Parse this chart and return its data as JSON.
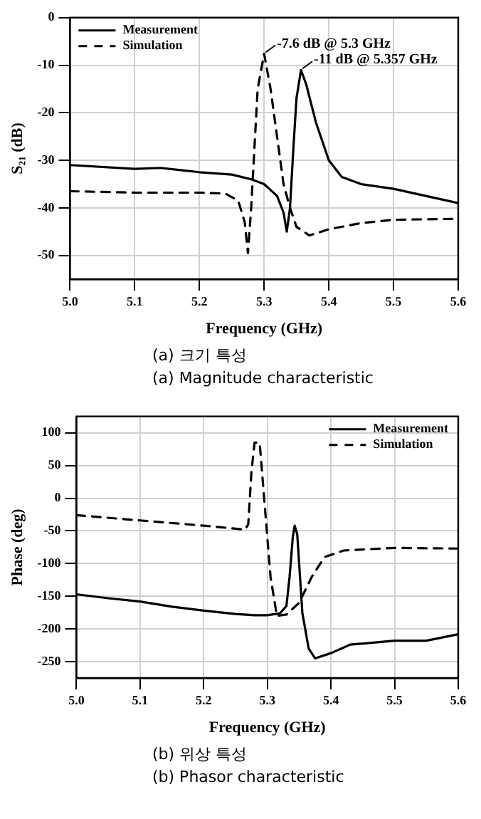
{
  "chart_data": [
    {
      "type": "line",
      "xlabel": "Frequency (GHz)",
      "ylabel": "S₂₁ (dB)",
      "xlim": [
        5.0,
        5.6
      ],
      "xticks": [
        {
          "value": 5.0,
          "label": "5.0"
        },
        5.1,
        5.2,
        5.3,
        5.4,
        5.5,
        5.6
      ],
      "ylim": [
        -55,
        0
      ],
      "yticks": [
        -50,
        -40,
        -30,
        -20,
        -10,
        0
      ],
      "grid": true,
      "legend": "top left",
      "marker": "none",
      "annotations": [
        {
          "text": "-7.6 dB @ 5.3 GHz",
          "x": 5.3,
          "y": -7.6
        },
        {
          "text": "-11 dB @ 5.357 GHz",
          "x": 5.357,
          "y": -11
        },
        "(a) 크기 특성",
        "(a) Magnitude characteristic"
      ],
      "series": [
        {
          "name": "Measurement",
          "color": "#000000",
          "line_style": "solid",
          "x": [
            5.0,
            5.1,
            5.14,
            5.2,
            5.25,
            5.28,
            5.3,
            5.32,
            5.33,
            5.335,
            5.34,
            5.345,
            5.35,
            5.357,
            5.365,
            5.38,
            5.4,
            5.42,
            5.45,
            5.5,
            5.55,
            5.6
          ],
          "values": [
            -31,
            -31.8,
            -31.6,
            -32.5,
            -33,
            -34,
            -35,
            -37.5,
            -41,
            -45,
            -40,
            -28,
            -17,
            -11,
            -14,
            -22,
            -30,
            -33.5,
            -35,
            -36,
            -37.5,
            -39
          ]
        },
        {
          "name": "Simulation",
          "color": "#000000",
          "line_style": "dashed",
          "x": [
            5.0,
            5.1,
            5.2,
            5.24,
            5.26,
            5.27,
            5.275,
            5.28,
            5.29,
            5.3,
            5.31,
            5.32,
            5.33,
            5.34,
            5.35,
            5.37,
            5.4,
            5.45,
            5.5,
            5.6
          ],
          "values": [
            -36.5,
            -36.8,
            -36.8,
            -37,
            -38.5,
            -43,
            -49.5,
            -40,
            -15,
            -7.6,
            -15,
            -25,
            -35,
            -40,
            -44,
            -45.8,
            -44.5,
            -43.2,
            -42.5,
            -42.3
          ]
        }
      ]
    },
    {
      "type": "line",
      "xlabel": "Frequency (GHz)",
      "ylabel": "Phase (deg)",
      "xlim": [
        5.0,
        5.6
      ],
      "xticks": [
        {
          "value": 5.0,
          "label": "5.0"
        },
        5.1,
        5.2,
        5.3,
        5.4,
        5.5,
        5.6
      ],
      "ylim": [
        -275,
        125
      ],
      "yticks": [
        -250,
        -200,
        -150,
        -100,
        -50,
        0,
        50,
        100
      ],
      "grid": true,
      "legend": "top right",
      "marker": "none",
      "annotations": [
        "(b) 위상 특성",
        "(b) Phasor characteristic"
      ],
      "series": [
        {
          "name": "Measurement",
          "color": "#000000",
          "line_style": "solid",
          "x": [
            5.0,
            5.05,
            5.1,
            5.15,
            5.2,
            5.25,
            5.28,
            5.3,
            5.32,
            5.33,
            5.335,
            5.34,
            5.343,
            5.347,
            5.35,
            5.355,
            5.365,
            5.375,
            5.4,
            5.43,
            5.5,
            5.55,
            5.6
          ],
          "values": [
            -147,
            -153,
            -158,
            -166,
            -172,
            -177,
            -179,
            -179,
            -176,
            -165,
            -120,
            -60,
            -42,
            -55,
            -100,
            -175,
            -230,
            -245,
            -237,
            -224,
            -218,
            -218,
            -208
          ]
        },
        {
          "name": "Simulation",
          "color": "#000000",
          "line_style": "dashed",
          "x": [
            5.0,
            5.1,
            5.2,
            5.265,
            5.27,
            5.275,
            5.28,
            5.288,
            5.295,
            5.305,
            5.315,
            5.33,
            5.35,
            5.37,
            5.39,
            5.42,
            5.5,
            5.6
          ],
          "values": [
            -26,
            -34,
            -42,
            -48,
            -40,
            40,
            85,
            85,
            0,
            -120,
            -180,
            -178,
            -160,
            -120,
            -90,
            -80,
            -76,
            -77
          ]
        }
      ]
    }
  ]
}
